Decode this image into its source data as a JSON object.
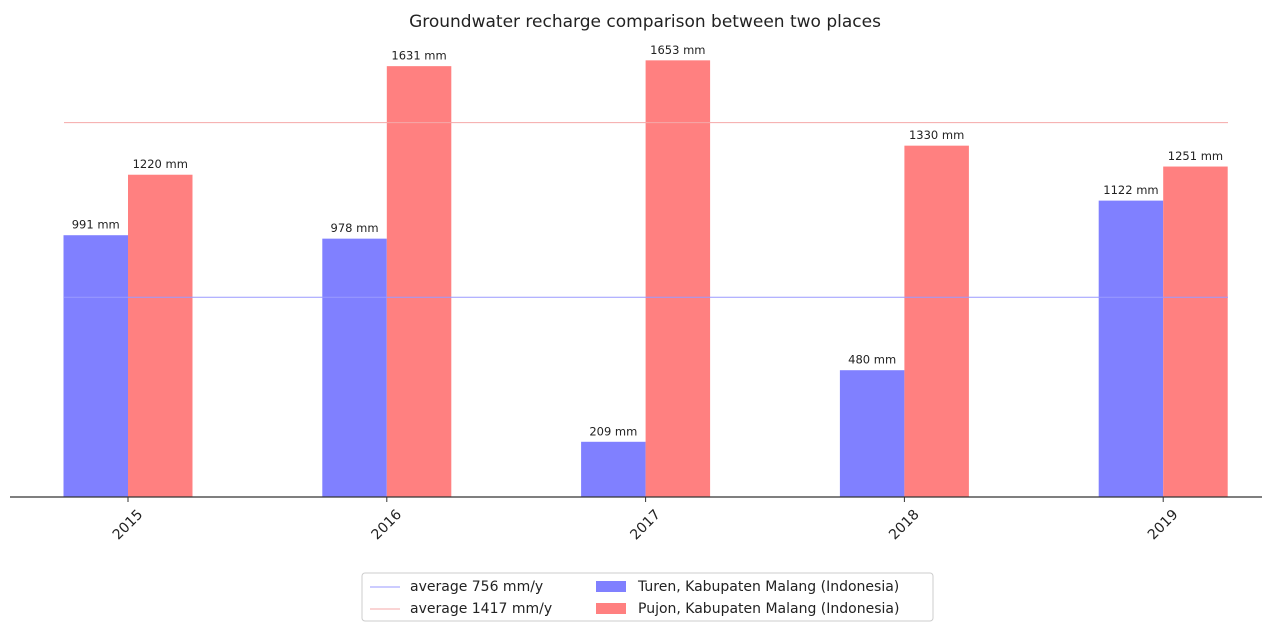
{
  "chart_data": {
    "type": "bar",
    "title": "Groundwater recharge comparison between two places",
    "categories": [
      "2015",
      "2016",
      "2017",
      "2018",
      "2019"
    ],
    "series": [
      {
        "name": "Turen, Kabupaten Malang (Indonesia)",
        "color": "#8080ff",
        "values": [
          991,
          978,
          209,
          480,
          1122
        ],
        "value_labels": [
          "991 mm",
          "978 mm",
          "209 mm",
          "480 mm",
          "1122 mm"
        ]
      },
      {
        "name": "Pujon, Kabupaten Malang (Indonesia)",
        "color": "#ff8080",
        "values": [
          1220,
          1631,
          1653,
          1330,
          1251
        ],
        "value_labels": [
          "1220 mm",
          "1631 mm",
          "1653 mm",
          "1330 mm",
          "1251 mm"
        ]
      }
    ],
    "reference_lines": [
      {
        "value": 756,
        "label": "average 756 mm/y",
        "color": "#9a9aff"
      },
      {
        "value": 1417,
        "label": "average 1417 mm/y",
        "color": "#f5a8a8"
      }
    ],
    "ylim": [
      0,
      1730
    ],
    "legend": "bottom"
  }
}
